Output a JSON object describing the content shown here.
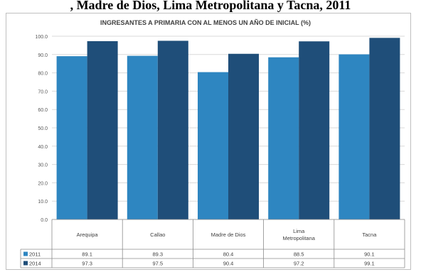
{
  "page_heading": ", Madre de Dios, Lima Metropolitana y Tacna, 2011",
  "chart_data": {
    "type": "bar",
    "title": "INGRESANTES A PRIMARIA CON AL MENOS UN AÑO DE INICIAL (%)",
    "xlabel": "",
    "ylabel": "",
    "categories": [
      "Arequipa",
      "Callao",
      "Madre de Dios",
      "Lima Metropolitana",
      "Tacna"
    ],
    "category_lines": [
      [
        "Arequipa"
      ],
      [
        "Callao"
      ],
      [
        "Madre de Dios"
      ],
      [
        "Lima",
        "Metropolitana"
      ],
      [
        "Tacna"
      ]
    ],
    "series": [
      {
        "name": "2011",
        "values": [
          89.1,
          89.3,
          80.4,
          88.5,
          90.1
        ],
        "color": "#2e86c1"
      },
      {
        "name": "2014",
        "values": [
          97.3,
          97.5,
          90.4,
          97.2,
          99.1
        ],
        "color": "#1f4e79"
      }
    ],
    "ylim": [
      0,
      100
    ],
    "yticks": [
      "0.0",
      "10.0",
      "20.0",
      "30.0",
      "40.0",
      "50.0",
      "60.0",
      "70.0",
      "80.0",
      "90.0",
      "100.0"
    ],
    "ytick_values": [
      0,
      10,
      20,
      30,
      40,
      50,
      60,
      70,
      80,
      90,
      100
    ],
    "grid": true,
    "legend": "data-table",
    "data_table": [
      {
        "series": "2011",
        "cells": [
          "89.1",
          "89.3",
          "80.4",
          "88.5",
          "90.1"
        ]
      },
      {
        "series": "2014",
        "cells": [
          "97.3",
          "97.5",
          "90.4",
          "97.2",
          "99.1"
        ]
      }
    ]
  }
}
